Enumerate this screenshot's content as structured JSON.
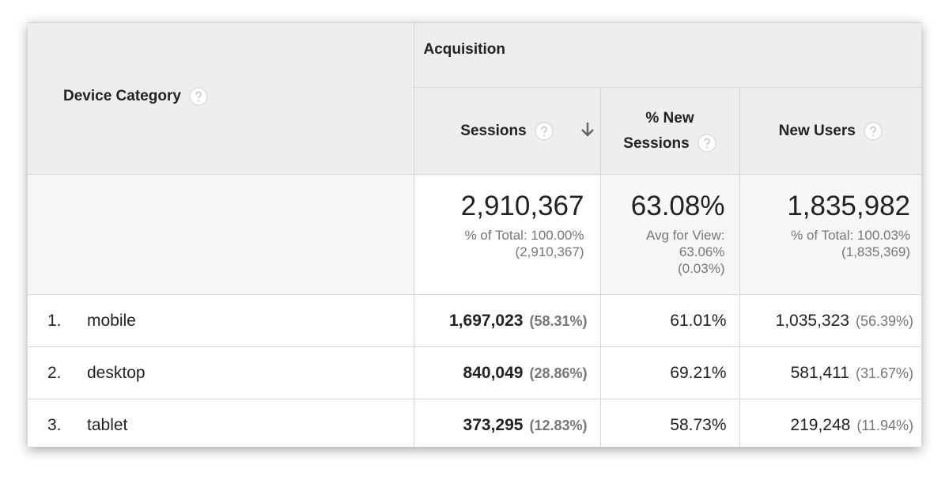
{
  "header": {
    "device_category": "Device Category",
    "acquisition": "Acquisition",
    "sessions": "Sessions",
    "new_sessions": "% New Sessions",
    "new_users": "New Users"
  },
  "totals": {
    "sessions": "2,910,367",
    "sessions_note": "% of Total: 100.00%",
    "sessions_note2": "(2,910,367)",
    "new_sessions": "63.08%",
    "new_sessions_note": "Avg for View: 63.06%",
    "new_sessions_note2": "(0.03%)",
    "new_users": "1,835,982",
    "new_users_note": "% of Total: 100.03%",
    "new_users_note2": "(1,835,369)"
  },
  "table": {
    "rows": [
      [
        "1.",
        "mobile",
        "1,697,023",
        "(58.31%)",
        "61.01%",
        "1,035,323",
        "(56.39%)"
      ],
      [
        "2.",
        "desktop",
        "840,049",
        "(28.86%)",
        "69.21%",
        "581,411",
        "(31.67%)"
      ],
      [
        "3.",
        "tablet",
        "373,295",
        "(12.83%)",
        "58.73%",
        "219,248",
        "(11.94%)"
      ]
    ]
  }
}
